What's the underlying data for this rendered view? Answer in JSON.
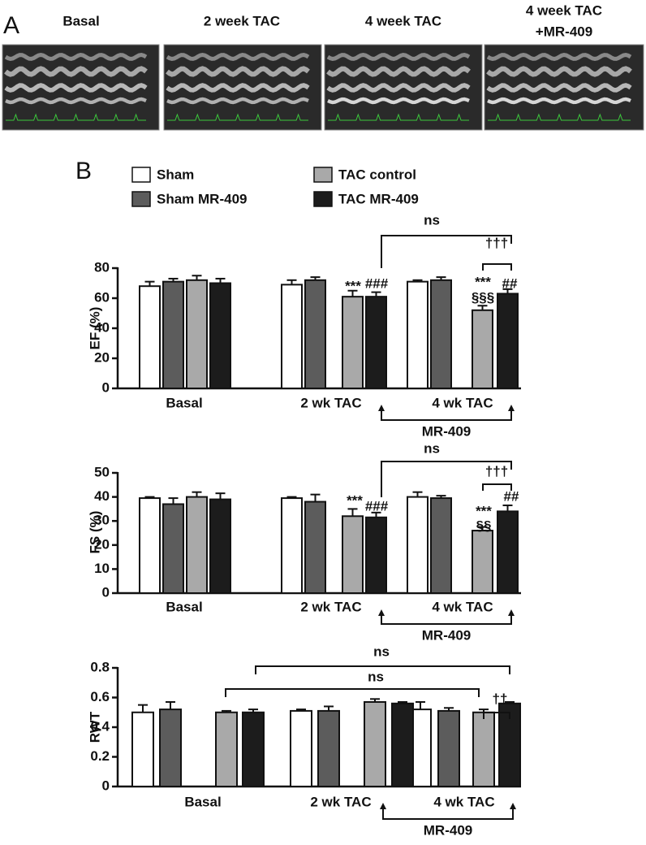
{
  "panel_labels": [
    "A",
    "B"
  ],
  "image_titles": [
    [
      "Basal"
    ],
    [
      "2 week TAC"
    ],
    [
      "4 week TAC"
    ],
    [
      "4 week TAC",
      "+MR-409"
    ]
  ],
  "chart_data": [
    {
      "type": "bar",
      "ylabel": "EF (%)",
      "categories": [
        "Basal",
        "2 wk TAC",
        "4 wk TAC"
      ],
      "ylim": [
        0,
        80
      ],
      "yticks": [
        0,
        20,
        40,
        60,
        80
      ],
      "bracket_label": "MR-409",
      "annotations": [
        "ns",
        "†††",
        "***",
        "###",
        "***",
        "§§§",
        "##"
      ],
      "series": [
        {
          "name": "Sham",
          "color": "#ffffff",
          "values": [
            68,
            69,
            71
          ],
          "errors": [
            3,
            3,
            1
          ]
        },
        {
          "name": "Sham MR-409",
          "color": "#5c5c5c",
          "values": [
            71,
            72,
            72
          ],
          "errors": [
            2,
            2,
            2
          ]
        },
        {
          "name": "TAC control",
          "color": "#a9a9a9",
          "values": [
            72,
            61,
            52
          ],
          "errors": [
            3,
            4,
            3
          ]
        },
        {
          "name": "TAC MR-409",
          "color": "#1c1c1c",
          "values": [
            70,
            61,
            63
          ],
          "errors": [
            3,
            3,
            3
          ]
        }
      ]
    },
    {
      "type": "bar",
      "ylabel": "FS (%)",
      "categories": [
        "Basal",
        "2 wk TAC",
        "4 wk TAC"
      ],
      "ylim": [
        0,
        50
      ],
      "yticks": [
        0,
        10,
        20,
        30,
        40,
        50
      ],
      "bracket_label": "MR-409",
      "annotations": [
        "ns",
        "†††",
        "***",
        "###",
        "***",
        "§§",
        "##"
      ],
      "series": [
        {
          "color": "#ffffff",
          "values": [
            39.5,
            39.5,
            40
          ],
          "errors": [
            0.5,
            0.5,
            2
          ]
        },
        {
          "color": "#5c5c5c",
          "values": [
            37,
            38,
            39.5
          ],
          "errors": [
            2.5,
            3,
            1
          ]
        },
        {
          "color": "#a9a9a9",
          "values": [
            40,
            32,
            26
          ],
          "errors": [
            2,
            3,
            1.5
          ]
        },
        {
          "color": "#1c1c1c",
          "values": [
            39,
            31.5,
            34
          ],
          "errors": [
            2.5,
            2,
            2.5
          ]
        }
      ]
    },
    {
      "type": "bar",
      "ylabel": "RWT",
      "categories": [
        "Basal",
        "2 wk TAC",
        "4 wk TAC"
      ],
      "ylim": [
        0,
        0.8
      ],
      "yticks": [
        0,
        0.2,
        0.4,
        0.6,
        0.8
      ],
      "bracket_label": "MR-409",
      "annotations": [
        "ns",
        "ns",
        "††"
      ],
      "series": [
        {
          "color": "#ffffff",
          "values": [
            0.5,
            0.51,
            0.52
          ],
          "errors": [
            0.05,
            0.01,
            0.05
          ]
        },
        {
          "color": "#5c5c5c",
          "values": [
            0.52,
            0.51,
            0.51
          ],
          "errors": [
            0.05,
            0.03,
            0.02
          ]
        },
        {
          "color": "#a9a9a9",
          "values": [
            0.5,
            0.57,
            0.5
          ],
          "errors": [
            0.01,
            0.02,
            0.02
          ]
        },
        {
          "color": "#1c1c1c",
          "values": [
            0.5,
            0.56,
            0.56
          ],
          "errors": [
            0.02,
            0.01,
            0.01
          ]
        }
      ]
    }
  ]
}
